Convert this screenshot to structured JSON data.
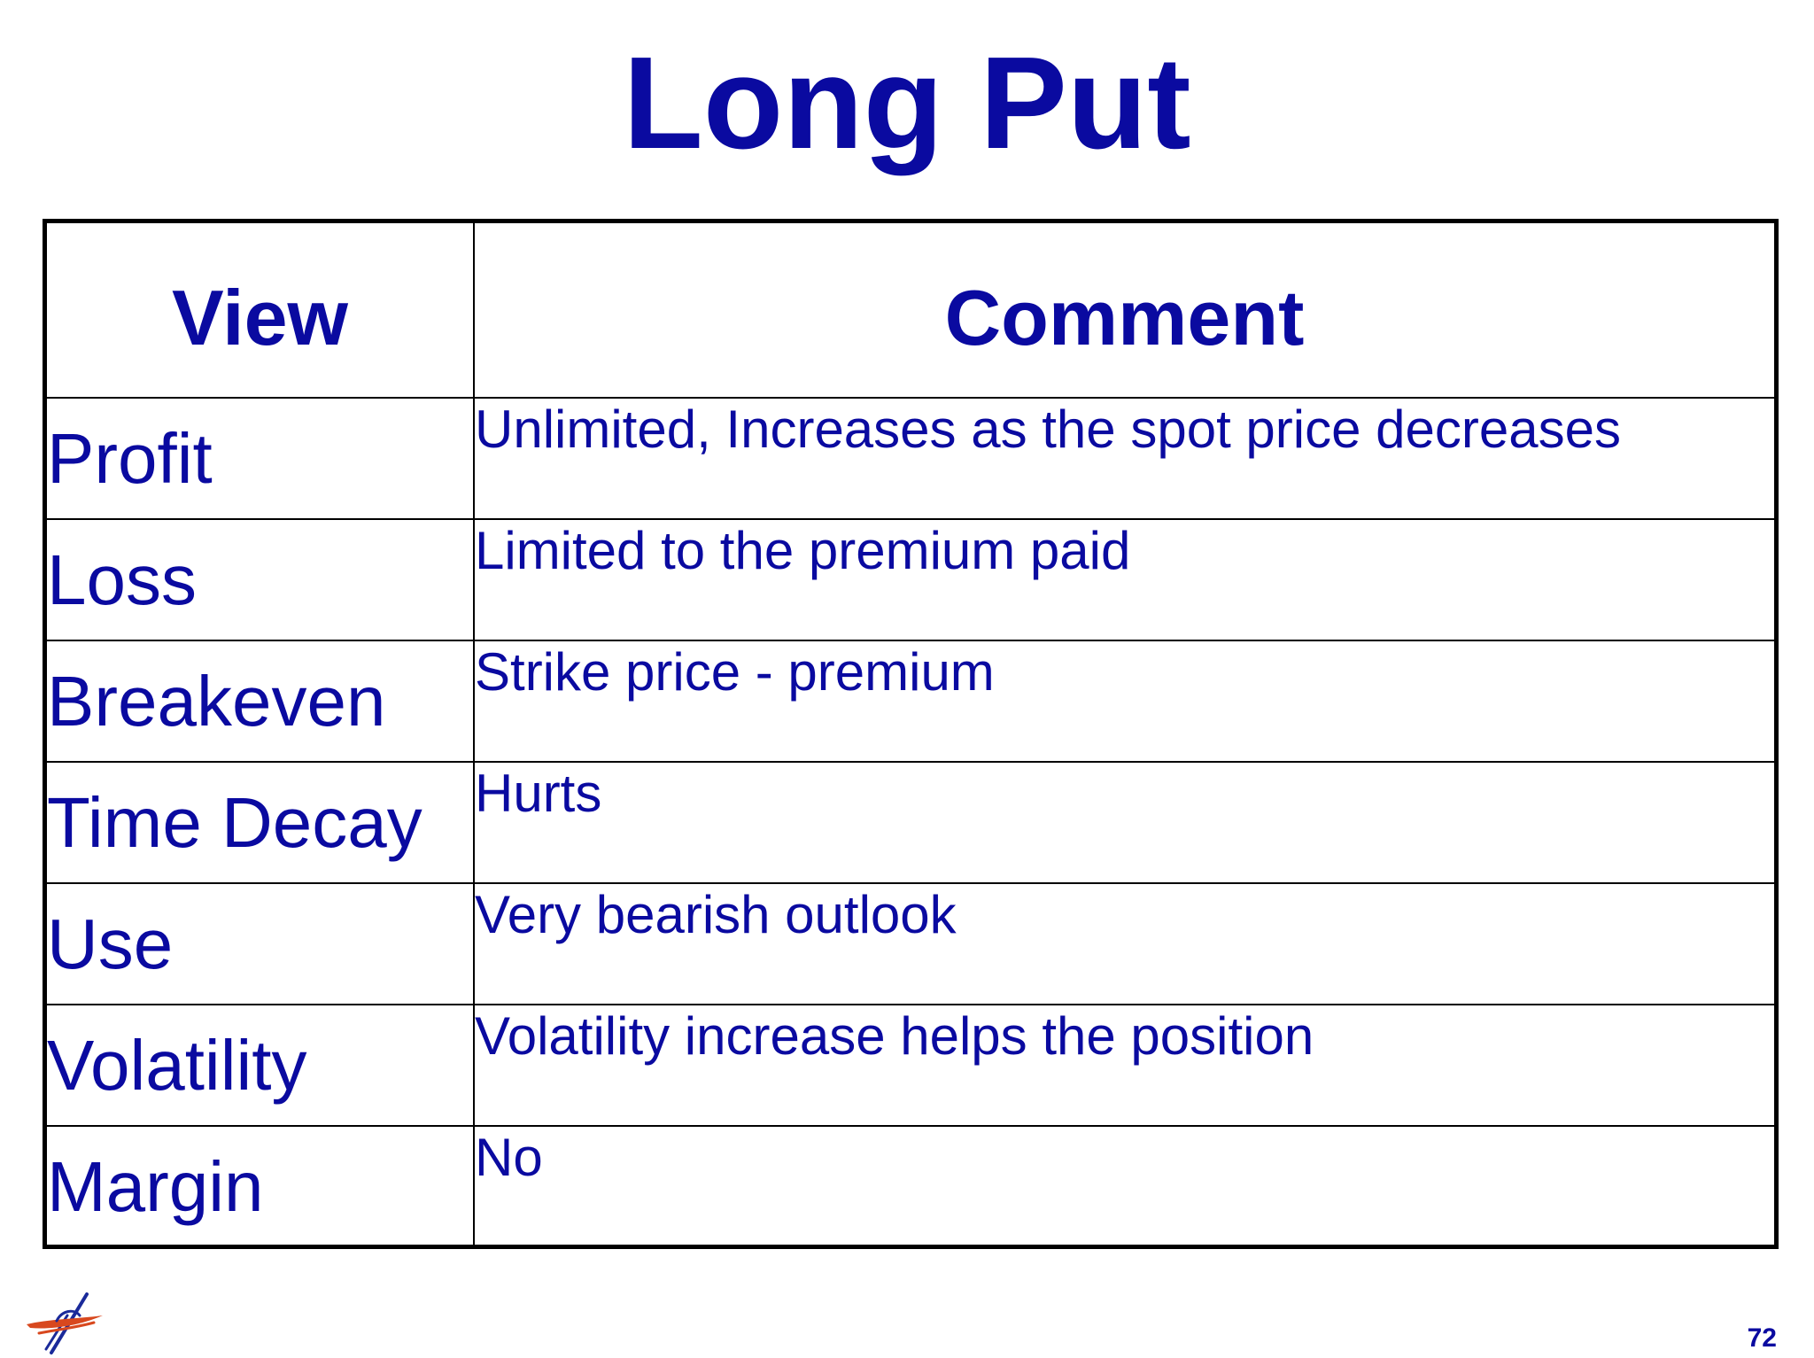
{
  "slide": {
    "title": "Long Put",
    "page_number": "72"
  },
  "table": {
    "headers": {
      "view": "View",
      "comment": "Comment"
    },
    "rows": [
      {
        "view": "Profit",
        "comment": "Unlimited, Increases as the spot price decreases"
      },
      {
        "view": "Loss",
        "comment": "Limited to the premium paid"
      },
      {
        "view": "Breakeven",
        "comment": "Strike price - premium"
      },
      {
        "view": "Time Decay",
        "comment": "Hurts"
      },
      {
        "view": "Use",
        "comment": "Very bearish outlook"
      },
      {
        "view": "Volatility",
        "comment": "Volatility increase helps the position"
      },
      {
        "view": "Margin",
        "comment": "No"
      }
    ]
  },
  "logo": {
    "icon": "compass-star-logo-icon"
  },
  "colors": {
    "text": "#0a0aa0",
    "border": "#000000",
    "background": "#ffffff",
    "logo_red": "#d8481e",
    "logo_blue": "#1a2a9a"
  }
}
